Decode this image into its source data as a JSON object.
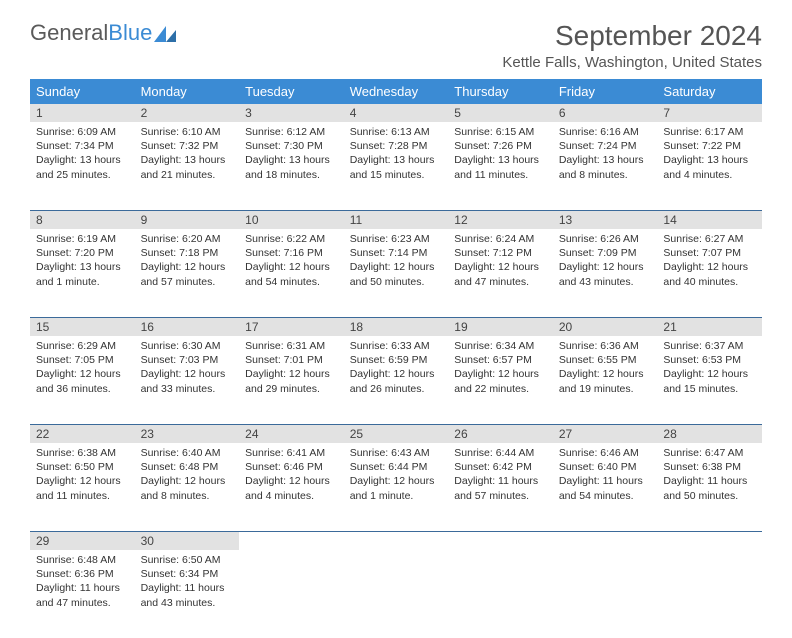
{
  "logo": {
    "text1": "General",
    "text2": "Blue"
  },
  "title": "September 2024",
  "location": "Kettle Falls, Washington, United States",
  "colors": {
    "header_bg": "#3b8bd4",
    "header_text": "#ffffff",
    "daynum_bg": "#e2e2e2",
    "border": "#3b6a9a",
    "text": "#333333"
  },
  "dayheaders": [
    "Sunday",
    "Monday",
    "Tuesday",
    "Wednesday",
    "Thursday",
    "Friday",
    "Saturday"
  ],
  "weeks": [
    [
      {
        "n": "1",
        "sr": "Sunrise: 6:09 AM",
        "ss": "Sunset: 7:34 PM",
        "dl": "Daylight: 13 hours and 25 minutes."
      },
      {
        "n": "2",
        "sr": "Sunrise: 6:10 AM",
        "ss": "Sunset: 7:32 PM",
        "dl": "Daylight: 13 hours and 21 minutes."
      },
      {
        "n": "3",
        "sr": "Sunrise: 6:12 AM",
        "ss": "Sunset: 7:30 PM",
        "dl": "Daylight: 13 hours and 18 minutes."
      },
      {
        "n": "4",
        "sr": "Sunrise: 6:13 AM",
        "ss": "Sunset: 7:28 PM",
        "dl": "Daylight: 13 hours and 15 minutes."
      },
      {
        "n": "5",
        "sr": "Sunrise: 6:15 AM",
        "ss": "Sunset: 7:26 PM",
        "dl": "Daylight: 13 hours and 11 minutes."
      },
      {
        "n": "6",
        "sr": "Sunrise: 6:16 AM",
        "ss": "Sunset: 7:24 PM",
        "dl": "Daylight: 13 hours and 8 minutes."
      },
      {
        "n": "7",
        "sr": "Sunrise: 6:17 AM",
        "ss": "Sunset: 7:22 PM",
        "dl": "Daylight: 13 hours and 4 minutes."
      }
    ],
    [
      {
        "n": "8",
        "sr": "Sunrise: 6:19 AM",
        "ss": "Sunset: 7:20 PM",
        "dl": "Daylight: 13 hours and 1 minute."
      },
      {
        "n": "9",
        "sr": "Sunrise: 6:20 AM",
        "ss": "Sunset: 7:18 PM",
        "dl": "Daylight: 12 hours and 57 minutes."
      },
      {
        "n": "10",
        "sr": "Sunrise: 6:22 AM",
        "ss": "Sunset: 7:16 PM",
        "dl": "Daylight: 12 hours and 54 minutes."
      },
      {
        "n": "11",
        "sr": "Sunrise: 6:23 AM",
        "ss": "Sunset: 7:14 PM",
        "dl": "Daylight: 12 hours and 50 minutes."
      },
      {
        "n": "12",
        "sr": "Sunrise: 6:24 AM",
        "ss": "Sunset: 7:12 PM",
        "dl": "Daylight: 12 hours and 47 minutes."
      },
      {
        "n": "13",
        "sr": "Sunrise: 6:26 AM",
        "ss": "Sunset: 7:09 PM",
        "dl": "Daylight: 12 hours and 43 minutes."
      },
      {
        "n": "14",
        "sr": "Sunrise: 6:27 AM",
        "ss": "Sunset: 7:07 PM",
        "dl": "Daylight: 12 hours and 40 minutes."
      }
    ],
    [
      {
        "n": "15",
        "sr": "Sunrise: 6:29 AM",
        "ss": "Sunset: 7:05 PM",
        "dl": "Daylight: 12 hours and 36 minutes."
      },
      {
        "n": "16",
        "sr": "Sunrise: 6:30 AM",
        "ss": "Sunset: 7:03 PM",
        "dl": "Daylight: 12 hours and 33 minutes."
      },
      {
        "n": "17",
        "sr": "Sunrise: 6:31 AM",
        "ss": "Sunset: 7:01 PM",
        "dl": "Daylight: 12 hours and 29 minutes."
      },
      {
        "n": "18",
        "sr": "Sunrise: 6:33 AM",
        "ss": "Sunset: 6:59 PM",
        "dl": "Daylight: 12 hours and 26 minutes."
      },
      {
        "n": "19",
        "sr": "Sunrise: 6:34 AM",
        "ss": "Sunset: 6:57 PM",
        "dl": "Daylight: 12 hours and 22 minutes."
      },
      {
        "n": "20",
        "sr": "Sunrise: 6:36 AM",
        "ss": "Sunset: 6:55 PM",
        "dl": "Daylight: 12 hours and 19 minutes."
      },
      {
        "n": "21",
        "sr": "Sunrise: 6:37 AM",
        "ss": "Sunset: 6:53 PM",
        "dl": "Daylight: 12 hours and 15 minutes."
      }
    ],
    [
      {
        "n": "22",
        "sr": "Sunrise: 6:38 AM",
        "ss": "Sunset: 6:50 PM",
        "dl": "Daylight: 12 hours and 11 minutes."
      },
      {
        "n": "23",
        "sr": "Sunrise: 6:40 AM",
        "ss": "Sunset: 6:48 PM",
        "dl": "Daylight: 12 hours and 8 minutes."
      },
      {
        "n": "24",
        "sr": "Sunrise: 6:41 AM",
        "ss": "Sunset: 6:46 PM",
        "dl": "Daylight: 12 hours and 4 minutes."
      },
      {
        "n": "25",
        "sr": "Sunrise: 6:43 AM",
        "ss": "Sunset: 6:44 PM",
        "dl": "Daylight: 12 hours and 1 minute."
      },
      {
        "n": "26",
        "sr": "Sunrise: 6:44 AM",
        "ss": "Sunset: 6:42 PM",
        "dl": "Daylight: 11 hours and 57 minutes."
      },
      {
        "n": "27",
        "sr": "Sunrise: 6:46 AM",
        "ss": "Sunset: 6:40 PM",
        "dl": "Daylight: 11 hours and 54 minutes."
      },
      {
        "n": "28",
        "sr": "Sunrise: 6:47 AM",
        "ss": "Sunset: 6:38 PM",
        "dl": "Daylight: 11 hours and 50 minutes."
      }
    ],
    [
      {
        "n": "29",
        "sr": "Sunrise: 6:48 AM",
        "ss": "Sunset: 6:36 PM",
        "dl": "Daylight: 11 hours and 47 minutes."
      },
      {
        "n": "30",
        "sr": "Sunrise: 6:50 AM",
        "ss": "Sunset: 6:34 PM",
        "dl": "Daylight: 11 hours and 43 minutes."
      },
      null,
      null,
      null,
      null,
      null
    ]
  ]
}
